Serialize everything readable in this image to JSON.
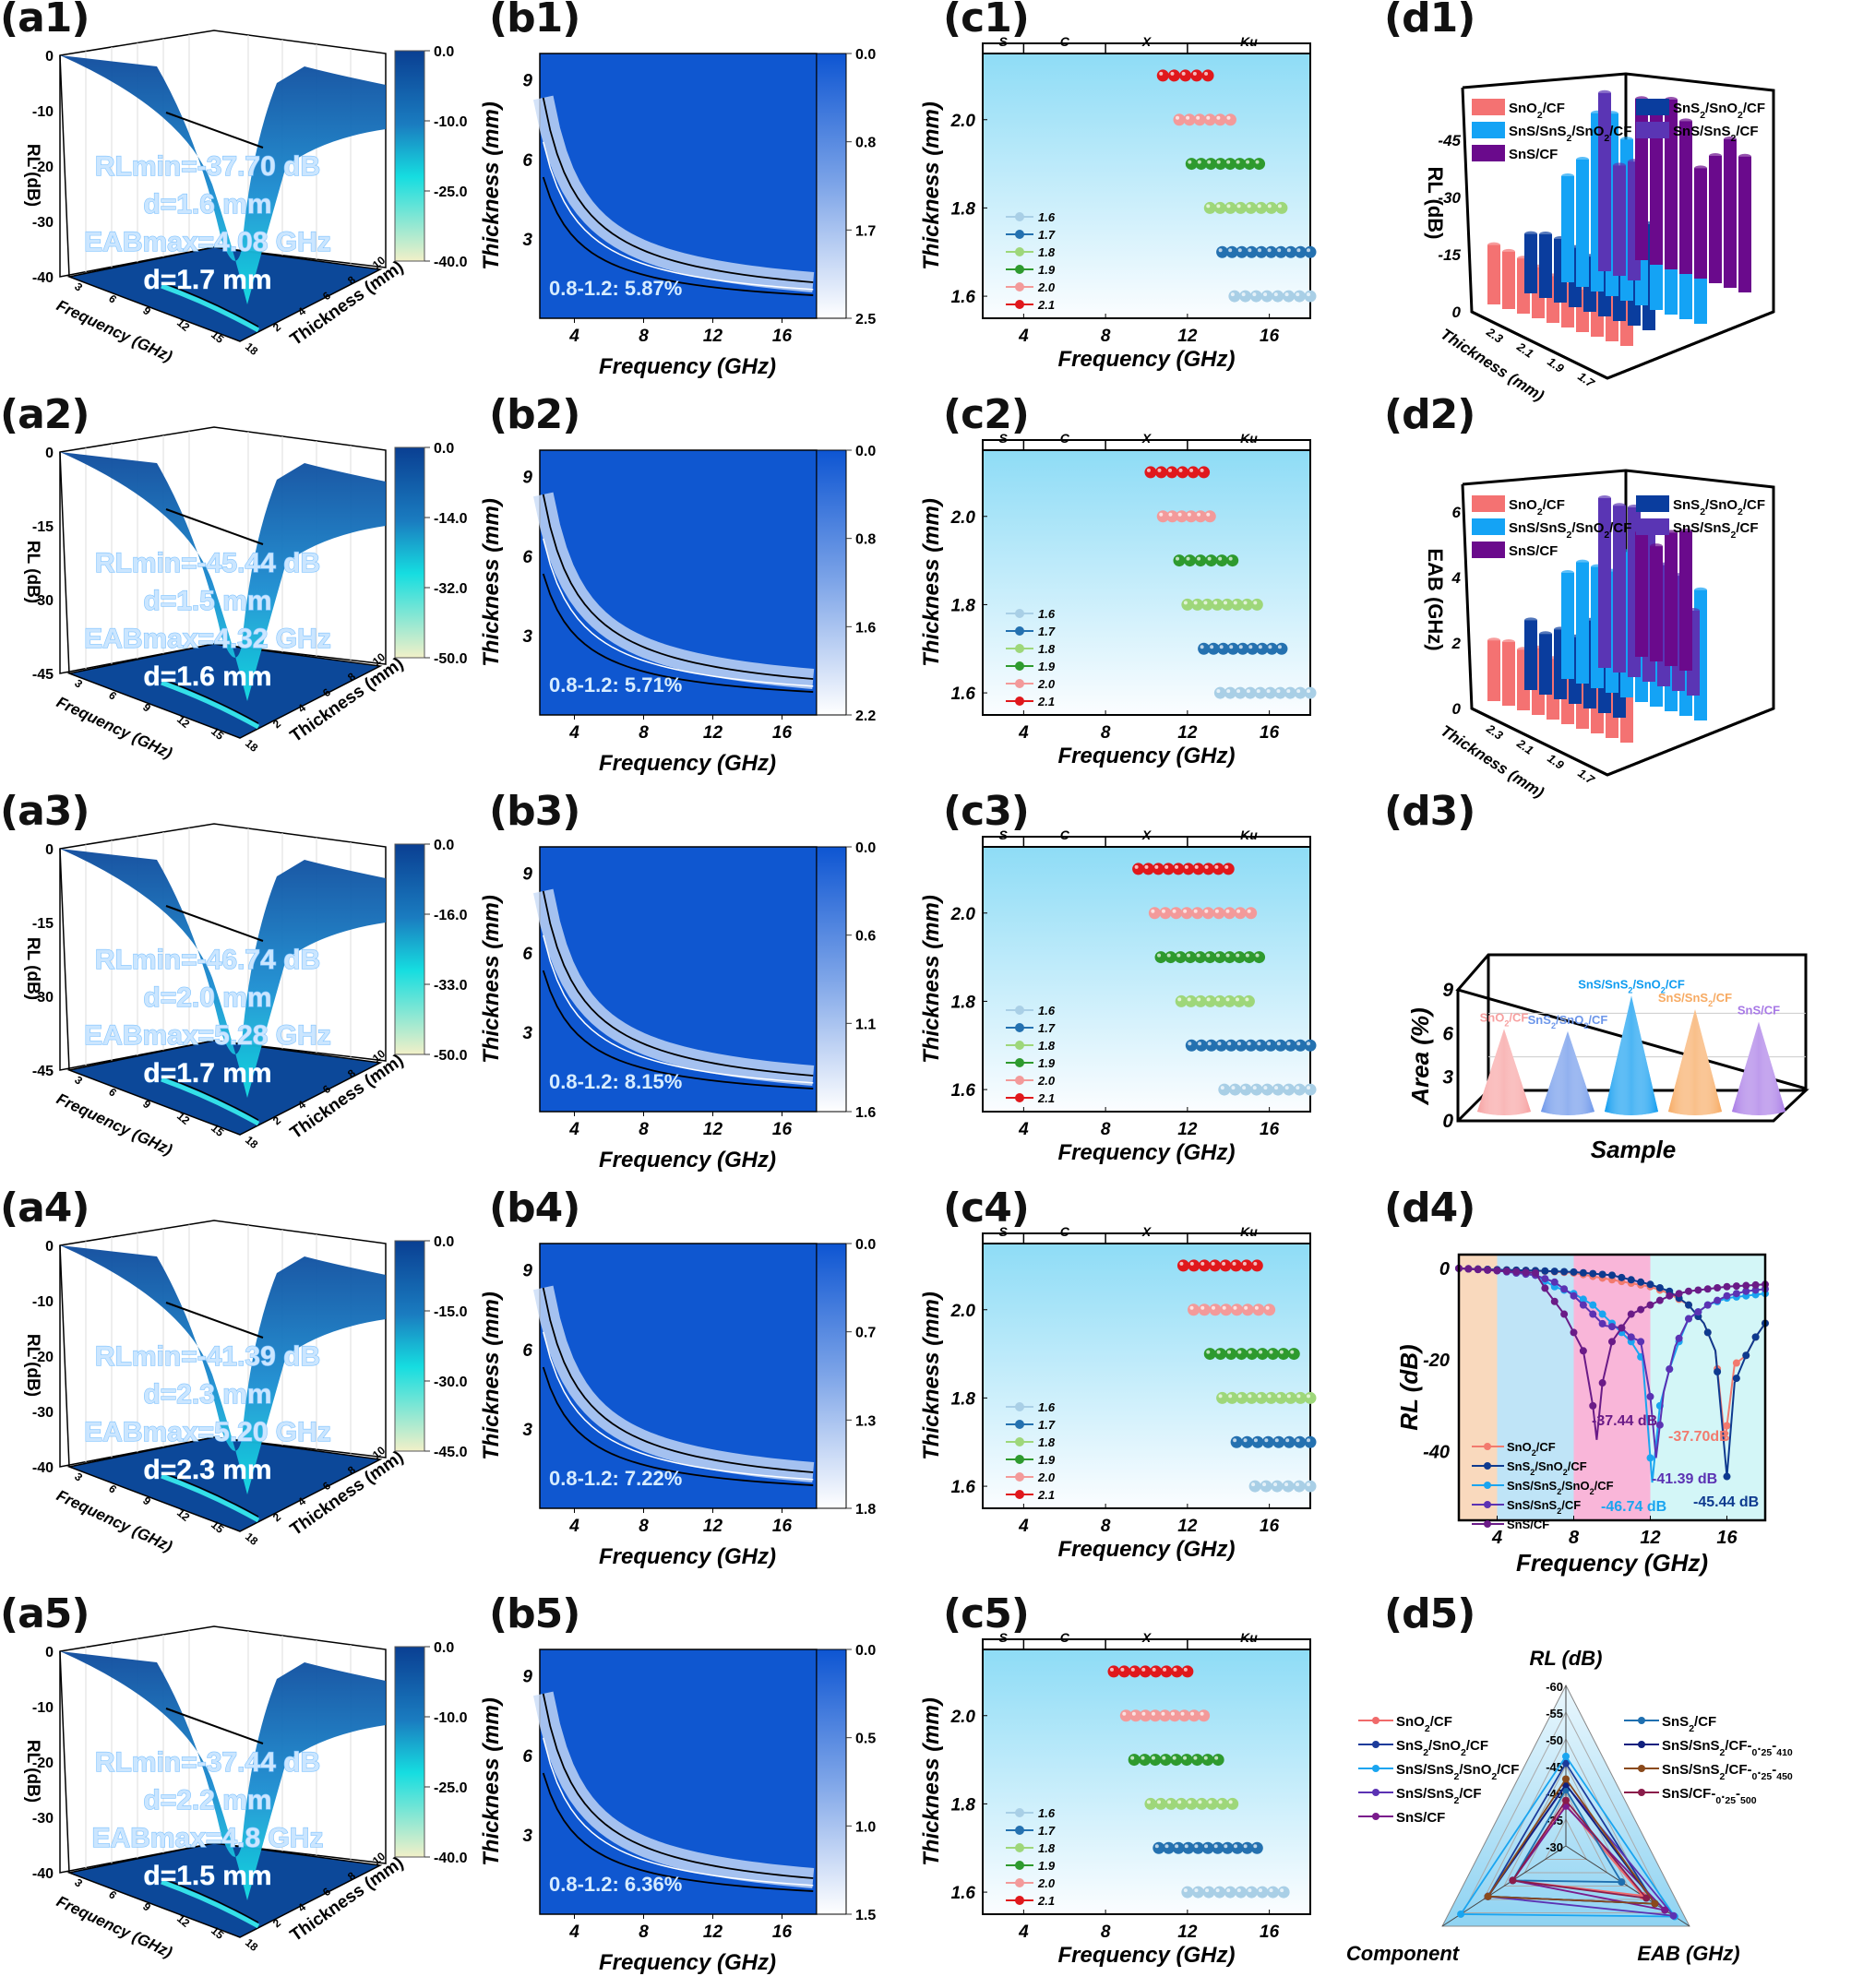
{
  "figure": {
    "panel_labels": {
      "a": [
        "(a1)",
        "(a2)",
        "(a3)",
        "(a4)",
        "(a5)"
      ],
      "b": [
        "(b1)",
        "(b2)",
        "(b3)",
        "(b4)",
        "(b5)"
      ],
      "c": [
        "(c1)",
        "(c2)",
        "(c3)",
        "(c4)",
        "(c5)"
      ],
      "d": [
        "(d1)",
        "(d2)",
        "(d3)",
        "(d4)",
        "(d5)"
      ]
    }
  },
  "chart_data": [
    {
      "id": "a-surface-plots",
      "type": "heatmap",
      "title": "3D RL surface vs frequency and thickness",
      "xlabel": "Frequency (GHz)",
      "ylabel": "Thickness (mm)",
      "zlabel": "RL (dB)",
      "x_ticks": [
        "3",
        "6",
        "9",
        "12",
        "15",
        "18"
      ],
      "y_ticks": [
        "2",
        "4",
        "6",
        "8",
        "10"
      ],
      "panels": [
        {
          "z_ticks": [
            "0",
            "-10",
            "-20",
            "-30",
            "-40"
          ],
          "colorbar": [
            "0.0",
            "-10.0",
            "-25.0",
            "-40.0"
          ],
          "annotation": [
            "RLmin=-37.70 dB",
            "d=1.6 mm",
            "EABmax=4.08 GHz",
            "d=1.7 mm"
          ],
          "rl_min": -37.7,
          "rl_min_d": 1.6,
          "eab_max": 4.08,
          "eab_d": 1.7
        },
        {
          "z_ticks": [
            "0",
            "-15",
            "-30",
            "-45"
          ],
          "colorbar": [
            "0.0",
            "-14.0",
            "-32.0",
            "-50.0"
          ],
          "annotation": [
            "RLmin=-45.44 dB",
            "d=1.5 mm",
            "EABmax=4.32 GHz",
            "d=1.6 mm"
          ],
          "rl_min": -45.44,
          "rl_min_d": 1.5,
          "eab_max": 4.32,
          "eab_d": 1.6
        },
        {
          "z_ticks": [
            "0",
            "-15",
            "-30",
            "-45"
          ],
          "colorbar": [
            "0.0",
            "-16.0",
            "-33.0",
            "-50.0"
          ],
          "annotation": [
            "RLmin=-46.74 dB",
            "d=2.0 mm",
            "EABmax=5.28 GHz",
            "d=1.7 mm"
          ],
          "rl_min": -46.74,
          "rl_min_d": 2.0,
          "eab_max": 5.28,
          "eab_d": 1.7
        },
        {
          "z_ticks": [
            "0",
            "-10",
            "-20",
            "-30",
            "-40"
          ],
          "colorbar": [
            "0.0",
            "-15.0",
            "-30.0",
            "-45.0"
          ],
          "annotation": [
            "RLmin=-41.39 dB",
            "d=2.3 mm",
            "EABmax=5.20 GHz",
            "d=2.3 mm"
          ],
          "rl_min": -41.39,
          "rl_min_d": 2.3,
          "eab_max": 5.2,
          "eab_d": 2.3
        },
        {
          "z_ticks": [
            "0",
            "-10",
            "-20",
            "-30",
            "-40"
          ],
          "colorbar": [
            "0.0",
            "-10.0",
            "-25.0",
            "-40.0"
          ],
          "annotation": [
            "RLmin=-37.44 dB",
            "d=2.2 mm",
            "EABmax=4.8 GHz",
            "d=1.5 mm"
          ],
          "rl_min": -37.44,
          "rl_min_d": 2.2,
          "eab_max": 4.8,
          "eab_d": 1.5
        }
      ]
    },
    {
      "id": "b-impedance-maps",
      "type": "heatmap",
      "xlabel": "Frequency (GHz)",
      "ylabel": "Thickness (mm)",
      "x_ticks": [
        "4",
        "8",
        "12",
        "16"
      ],
      "y_ticks": [
        "3",
        "6",
        "9"
      ],
      "xlim": [
        2,
        18
      ],
      "ylim": [
        0,
        10
      ],
      "panels": [
        {
          "colorbar": [
            "0.0",
            "0.8",
            "1.7",
            "2.5"
          ],
          "annotation": "0.8-1.2: 5.87%",
          "area_percent": 5.87
        },
        {
          "colorbar": [
            "0.0",
            "0.8",
            "1.6",
            "2.2"
          ],
          "annotation": "0.8-1.2: 5.71%",
          "area_percent": 5.71
        },
        {
          "colorbar": [
            "0.0",
            "0.6",
            "1.1",
            "1.6"
          ],
          "annotation": "0.8-1.2: 8.15%",
          "area_percent": 8.15
        },
        {
          "colorbar": [
            "0.0",
            "0.7",
            "1.3",
            "1.8"
          ],
          "annotation": "0.8-1.2: 7.22%",
          "area_percent": 7.22
        },
        {
          "colorbar": [
            "0.0",
            "0.5",
            "1.0",
            "1.5"
          ],
          "annotation": "0.8-1.2: 6.36%",
          "area_percent": 6.36
        }
      ]
    },
    {
      "id": "c-eab-bands",
      "type": "scatter",
      "xlabel": "Frequency (GHz)",
      "ylabel": "Thickness (mm)",
      "x_ticks": [
        "4",
        "8",
        "12",
        "16"
      ],
      "y_ticks": [
        "1.6",
        "1.8",
        "2.0"
      ],
      "xlim": [
        2,
        18
      ],
      "ylim": [
        1.55,
        2.15
      ],
      "bands": [
        {
          "name": "S",
          "from": 2,
          "to": 4
        },
        {
          "name": "C",
          "from": 4,
          "to": 8
        },
        {
          "name": "X",
          "from": 8,
          "to": 12
        },
        {
          "name": "Ku",
          "from": 12,
          "to": 18
        }
      ],
      "legend": [
        {
          "label": "1.6",
          "color": "#a9cfe6"
        },
        {
          "label": "1.7",
          "color": "#2471b0"
        },
        {
          "label": "1.8",
          "color": "#9ed77a"
        },
        {
          "label": "1.9",
          "color": "#2e9a2e"
        },
        {
          "label": "2.0",
          "color": "#f39a9a"
        },
        {
          "label": "2.1",
          "color": "#e0181c"
        }
      ],
      "panels": [
        {
          "ranges": {
            "2.1": [
              10.8,
              13.0
            ],
            "2.0": [
              11.6,
              14.1
            ],
            "1.9": [
              12.2,
              15.5
            ],
            "1.8": [
              13.1,
              16.6
            ],
            "1.7": [
              13.7,
              18.0
            ],
            "1.6": [
              14.3,
              18.0
            ]
          }
        },
        {
          "ranges": {
            "2.1": [
              10.2,
              12.8
            ],
            "2.0": [
              10.8,
              13.1
            ],
            "1.9": [
              11.6,
              14.2
            ],
            "1.8": [
              12.0,
              15.4
            ],
            "1.7": [
              12.8,
              16.6
            ],
            "1.6": [
              13.6,
              18.0
            ]
          }
        },
        {
          "ranges": {
            "2.1": [
              9.6,
              14.0
            ],
            "2.0": [
              10.4,
              15.1
            ],
            "1.9": [
              10.7,
              15.5
            ],
            "1.8": [
              11.7,
              15.0
            ],
            "1.7": [
              12.2,
              18.0
            ],
            "1.6": [
              13.8,
              18.0
            ]
          }
        },
        {
          "ranges": {
            "2.1": [
              11.8,
              15.4
            ],
            "2.0": [
              12.3,
              16.0
            ],
            "1.9": [
              13.1,
              17.2
            ],
            "1.8": [
              13.7,
              18.0
            ],
            "1.7": [
              14.4,
              18.0
            ],
            "1.6": [
              15.3,
              18.0
            ]
          }
        },
        {
          "ranges": {
            "2.1": [
              8.4,
              12.0
            ],
            "2.0": [
              9.0,
              12.8
            ],
            "1.9": [
              9.4,
              13.5
            ],
            "1.8": [
              10.2,
              14.2
            ],
            "1.7": [
              10.6,
              15.4
            ],
            "1.6": [
              12.0,
              16.7
            ]
          }
        }
      ]
    },
    {
      "id": "d1",
      "type": "bar",
      "title": "",
      "zlabel": "RL (dB)",
      "ylabel": "Thickness (mm)",
      "z_ticks": [
        "0",
        "-15",
        "-30",
        "-45"
      ],
      "thickness_ticks": [
        "2.3",
        "2.1",
        "1.9",
        "1.7"
      ],
      "legend": [
        {
          "label": "SnO2/CF",
          "color": "#f47272"
        },
        {
          "label": "SnS2/SnO2/CF",
          "color": "#0a3d9e"
        },
        {
          "label": "SnS/SnS2/SnO2/CF",
          "color": "#14a3f5"
        },
        {
          "label": "SnS/SnS2/CF",
          "color": "#5a35b4"
        },
        {
          "label": "SnS/CF",
          "color": "#6a0a8c"
        }
      ],
      "series": [
        {
          "name": "SnO2/CF",
          "values": [
            -14,
            -13.5,
            -13,
            -12,
            -11,
            -10.5,
            -10,
            -11,
            -15,
            -35
          ]
        },
        {
          "name": "SnS2/SnO2/CF",
          "values": [
            -14,
            -15,
            -15,
            -14,
            -13,
            -12,
            -12,
            -20,
            -25
          ]
        },
        {
          "name": "SnS/SnS2/SnO2/CF",
          "values": [
            -25,
            -30,
            -42,
            -43,
            -38,
            -46,
            -32,
            -35,
            -33,
            -30
          ]
        },
        {
          "name": "SnS/SnS2/CF",
          "values": [
            -42,
            -26,
            -28
          ]
        },
        {
          "name": "SnS/CF",
          "values": [
            -38,
            -36,
            -40,
            -36,
            -26,
            -30,
            -35,
            -32
          ]
        }
      ]
    },
    {
      "id": "d2",
      "type": "bar",
      "zlabel": "EAB (GHz)",
      "ylabel": "Thickness (mm)",
      "z_ticks": [
        "0",
        "2",
        "4",
        "6"
      ],
      "thickness_ticks": [
        "2.3",
        "2.1",
        "1.9",
        "1.7"
      ],
      "legend": [
        {
          "label": "SnO2/CF",
          "color": "#f47272"
        },
        {
          "label": "SnS2/SnO2/CF",
          "color": "#0a3d9e"
        },
        {
          "label": "SnS/SnS2/SnO2/CF",
          "color": "#14a3f5"
        },
        {
          "label": "SnS/SnS2/CF",
          "color": "#5a35b4"
        },
        {
          "label": "SnS/CF",
          "color": "#6a0a8c"
        }
      ],
      "series": [
        {
          "name": "SnO2/CF",
          "values": [
            2.0,
            2.1,
            2.0,
            2.2,
            2.0,
            2.1,
            2.9,
            2.9,
            3.4,
            3.1
          ]
        },
        {
          "name": "SnS2/SnO2/CF",
          "values": [
            2.3,
            2.0,
            2.3,
            2.2,
            2.9,
            3.4,
            4.1
          ]
        },
        {
          "name": "SnS/SnS2/SnO2/CF",
          "values": [
            3.5,
            4.0,
            4.0,
            4.0,
            4.8,
            5.0,
            4.8,
            4.8,
            5.2,
            4.3
          ]
        },
        {
          "name": "SnS/SnS2/CF",
          "values": [
            5.6,
            5.5,
            5.6,
            5.2,
            4.0,
            3.8,
            2.8
          ]
        },
        {
          "name": "SnS/CF",
          "values": [
            4.1,
            3.8,
            4.4,
            4.6
          ]
        }
      ]
    },
    {
      "id": "d3",
      "type": "bar",
      "title": "",
      "xlabel": "Sample",
      "ylabel": "Area (%)",
      "y_ticks": [
        "0",
        "3",
        "6",
        "9"
      ],
      "ylim": [
        0,
        9
      ],
      "categories": [
        "SnO2/CF",
        "SnS2/SnO2/CF",
        "SnS/SnS2/SnO2/CF",
        "SnS/SnS2/CF",
        "SnS/CF"
      ],
      "values": [
        5.87,
        5.71,
        8.15,
        7.22,
        6.36
      ],
      "colors": [
        "#f7a0a0",
        "#6c96ea",
        "#0f9cf0",
        "#f7aa62",
        "#a87ae6"
      ]
    },
    {
      "id": "d4",
      "type": "line",
      "xlabel": "Frequency (GHz)",
      "ylabel": "RL (dB)",
      "x_ticks": [
        "4",
        "8",
        "12",
        "16"
      ],
      "y_ticks": [
        "0",
        "-20",
        "-40"
      ],
      "xlim": [
        2,
        18
      ],
      "ylim": [
        -55,
        3
      ],
      "bands": [
        {
          "from": 2,
          "to": 4,
          "color": "#f9d9bd"
        },
        {
          "from": 4,
          "to": 8,
          "color": "#bfe4f7"
        },
        {
          "from": 8,
          "to": 12,
          "color": "#f9b6d9"
        },
        {
          "from": 12,
          "to": 18,
          "color": "#d3f6f7"
        }
      ],
      "series": [
        {
          "name": "SnO2/CF",
          "color": "#f27a6e",
          "x": [
            2,
            4,
            6,
            8,
            10,
            12,
            13,
            14,
            14.8,
            15.4,
            15.9,
            16.4,
            17,
            17.5,
            18
          ],
          "y": [
            0,
            -0.3,
            -0.5,
            -1,
            -2.5,
            -4,
            -5.5,
            -8,
            -12,
            -18,
            -37.7,
            -21,
            -19,
            -15,
            -12
          ]
        },
        {
          "name": "SnS2/SnO2/CF",
          "color": "#0e3a8f",
          "x": [
            2,
            4,
            6,
            8,
            10,
            12,
            13,
            14,
            14.8,
            15.4,
            16,
            16.4,
            17,
            17.5,
            18
          ],
          "y": [
            0,
            -0.3,
            -0.5,
            -0.8,
            -1.5,
            -3.5,
            -5,
            -8,
            -12,
            -18,
            -45.44,
            -25,
            -19,
            -15,
            -12
          ]
        },
        {
          "name": "SnS/SnS2/SnO2/CF",
          "color": "#1aa5f0",
          "x": [
            2,
            4,
            6,
            7,
            8,
            9,
            10,
            11,
            11.6,
            12.1,
            12.5,
            13,
            13.5,
            14,
            15,
            16,
            17,
            18
          ],
          "y": [
            0,
            -0.5,
            -1.5,
            -4,
            -5.5,
            -8,
            -12,
            -16,
            -20,
            -46.74,
            -30,
            -22,
            -16,
            -11,
            -8,
            -6.5,
            -6,
            -5.5
          ]
        },
        {
          "name": "SnS/SnS2/CF",
          "color": "#5b32b3",
          "x": [
            2,
            4,
            6,
            7,
            8,
            9,
            9.6,
            10.5,
            11,
            11.5,
            12,
            12.3,
            12.7,
            13.3,
            14,
            15,
            16,
            17,
            18
          ],
          "y": [
            0,
            -0.5,
            -1.5,
            -3,
            -6,
            -10,
            -12.5,
            -13,
            -15,
            -16,
            -28,
            -41.39,
            -27,
            -17,
            -11,
            -8,
            -6,
            -5,
            -4.5
          ]
        },
        {
          "name": "SnS/CF",
          "color": "#6a1b87",
          "x": [
            2,
            4,
            6,
            6.6,
            7.5,
            8.5,
            9,
            9.2,
            9.5,
            10,
            11,
            12,
            13,
            14,
            16,
            18
          ],
          "y": [
            0,
            -0.5,
            -1,
            -5,
            -10,
            -18,
            -30,
            -37.44,
            -25,
            -16,
            -10,
            -8,
            -6,
            -5,
            -4,
            -3.5
          ]
        }
      ],
      "annotations": [
        {
          "text": "-37.44 dB",
          "color": "#6a1b87"
        },
        {
          "text": "-37.70dB",
          "color": "#f27a6e"
        },
        {
          "text": "-41.39 dB",
          "color": "#5b32b3"
        },
        {
          "text": "-46.74 dB",
          "color": "#1aa5f0"
        },
        {
          "text": "-45.44 dB",
          "color": "#0e3a8f"
        }
      ],
      "legend": [
        "SnO2/CF",
        "SnS2/SnO2/CF",
        "SnS/SnS2/SnO2/CF",
        "SnS/SnS2/CF",
        "SnS/CF"
      ]
    },
    {
      "id": "d5",
      "type": "radar",
      "axes": [
        "RL (dB)",
        "EAB (GHz)",
        "Component"
      ],
      "rl_ticks": [
        "-60",
        "-55",
        "-50",
        "-45",
        "-40",
        "-35",
        "-30"
      ],
      "rl_range": [
        -30,
        -60
      ],
      "series": [
        {
          "name": "SnO2/CF",
          "color": "#f06a6a",
          "rl": -37.7,
          "eab_frac": 0.62,
          "comp_frac": 0.43
        },
        {
          "name": "SnS2/SnO2/CF",
          "color": "#1c3b9a",
          "rl": -45.44,
          "eab_frac": 0.72,
          "comp_frac": 0.63
        },
        {
          "name": "SnS/SnS2/SnO2/CF",
          "color": "#1aa5f0",
          "rl": -46.74,
          "eab_frac": 0.88,
          "comp_frac": 0.85
        },
        {
          "name": "SnS/SnS2/CF",
          "color": "#5b32b3",
          "rl": -41.39,
          "eab_frac": 0.87,
          "comp_frac": 0.63
        },
        {
          "name": "SnS/CF",
          "color": "#7a1b8c",
          "rl": -37.44,
          "eab_frac": 0.8,
          "comp_frac": 0.43
        },
        {
          "name": "SnS2/CF",
          "color": "#1f6fb0",
          "rl": -40.5,
          "eab_frac": 0.45,
          "comp_frac": 0.43
        },
        {
          "name": "SnS/SnS2/CF-0.25-410",
          "color": "#10207e",
          "rl": -41.5,
          "eab_frac": 0.72,
          "comp_frac": 0.63
        },
        {
          "name": "SnS/SnS2/CF-0.25-450",
          "color": "#8a4a1c",
          "rl": -42.5,
          "eab_frac": 0.72,
          "comp_frac": 0.63
        },
        {
          "name": "SnS/CF-0.25-500",
          "color": "#8a1c4a",
          "rl": -38.5,
          "eab_frac": 0.65,
          "comp_frac": 0.43
        }
      ],
      "legend_left": [
        "SnO2/CF",
        "SnS2/SnO2/CF",
        "SnS/SnS2/SnO2/CF",
        "SnS/SnS2/CF",
        "SnS/CF"
      ],
      "legend_right": [
        "SnS2/CF",
        "SnS/SnS2/CF-0.25-410",
        "SnS/SnS2/CF-0.25-450",
        "SnS/CF-0.25-500"
      ]
    }
  ]
}
